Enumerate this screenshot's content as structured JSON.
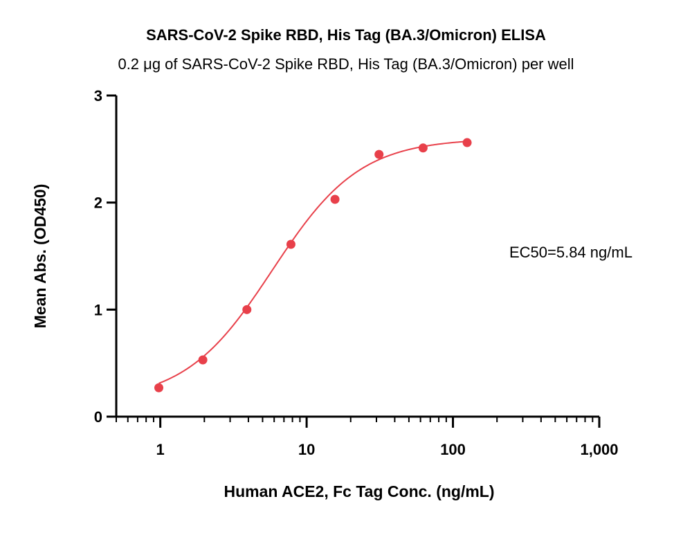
{
  "chart_data": {
    "type": "scatter",
    "title": "SARS-CoV-2 Spike RBD, His Tag (BA.3/Omicron) ELISA",
    "subtitle": "0.2 μg of SARS-CoV-2 Spike RBD, His Tag (BA.3/Omicron) per well",
    "xlabel": "Human ACE2, Fc Tag Conc. (ng/mL)",
    "ylabel": "Mean Abs. (OD450)",
    "x_scale": "log",
    "xlim": [
      0.5,
      1000
    ],
    "ylim": [
      0,
      3
    ],
    "x_ticks": [
      1,
      10,
      100,
      1000
    ],
    "x_tick_labels": [
      "1",
      "10",
      "100",
      "1,000"
    ],
    "y_ticks": [
      0,
      1,
      2,
      3
    ],
    "y_tick_labels": [
      "0",
      "1",
      "2",
      "3"
    ],
    "series": [
      {
        "x": [
          0.977,
          1.953,
          3.906,
          7.813,
          15.625,
          31.25,
          62.5,
          125
        ],
        "y": [
          0.27,
          0.53,
          1.0,
          1.61,
          2.03,
          2.45,
          2.51,
          2.56
        ]
      }
    ],
    "fit": {
      "type": "4PL",
      "bottom": 0.14,
      "top": 2.6,
      "ec50": 5.84,
      "hill": 1.45
    },
    "annotations": [
      "EC50=5.84 ng/mL"
    ],
    "color": "#e8404a",
    "grid": false
  }
}
